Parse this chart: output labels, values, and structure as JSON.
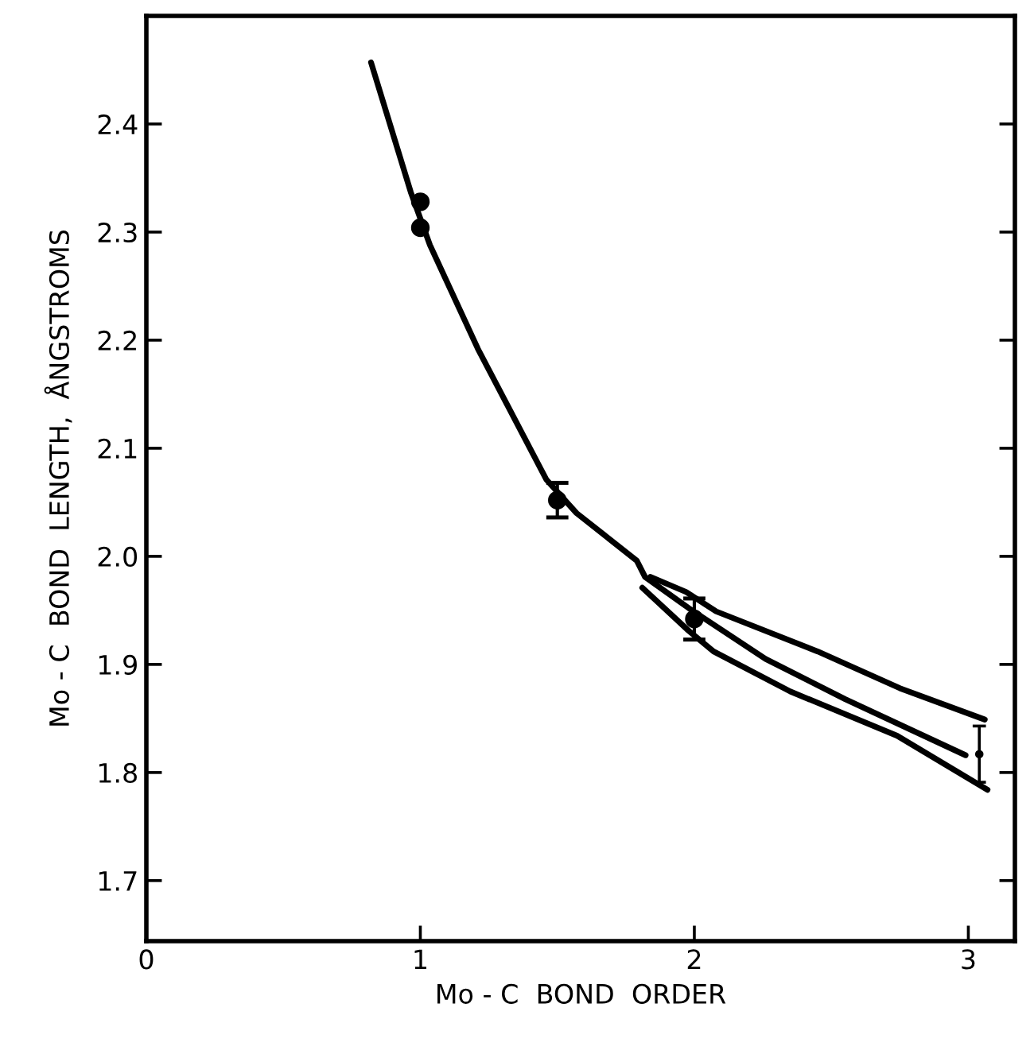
{
  "chart_data": {
    "type": "line",
    "xlabel": "Mo - C  BOND  ORDER",
    "ylabel": "Mo - C  BOND  LENGTH,  ÅNGSTROMS",
    "xlim": [
      0,
      3.17
    ],
    "ylim": [
      1.644,
      2.5
    ],
    "xticks": [
      0,
      1,
      2,
      3
    ],
    "yticks": [
      1.7,
      1.8,
      1.9,
      {
        "value": 2.0,
        "label": "2.0"
      },
      2.1,
      2.2,
      2.3,
      2.4
    ],
    "grid": false,
    "legend": false,
    "line_style": "solid",
    "series": [
      {
        "color": "#000000",
        "marker": "none",
        "x": [
          0.82,
          0.965,
          1.035,
          1.21,
          1.46,
          1.57,
          1.79,
          1.82,
          1.98,
          2.26,
          2.55,
          2.99
        ],
        "values": [
          2.457,
          2.337,
          2.288,
          2.192,
          2.071,
          2.04,
          1.996,
          1.981,
          1.952,
          1.905,
          1.868,
          1.816
        ]
      },
      {
        "color": "#000000",
        "marker": "none",
        "x": [
          1.84,
          1.97,
          2.08,
          2.45,
          2.75,
          3.06
        ],
        "values": [
          1.981,
          1.967,
          1.949,
          1.912,
          1.878,
          1.849
        ]
      },
      {
        "color": "#000000",
        "marker": "none",
        "x": [
          1.81,
          1.98,
          2.07,
          2.35,
          2.74,
          3.07
        ],
        "values": [
          1.971,
          1.931,
          1.912,
          1.875,
          1.834,
          1.784
        ]
      },
      {
        "type": "scatter",
        "color": "#000000",
        "marker": "circle",
        "x": [
          1,
          1,
          1.5,
          2
        ],
        "values": [
          2.328,
          2.304,
          2.052,
          1.942
        ],
        "errors": [
          null,
          null,
          0.016,
          0.019
        ]
      },
      {
        "type": "scatter",
        "color": "#000000",
        "marker": "circle",
        "x": [
          3.04
        ],
        "values": [
          1.817
        ],
        "errors": [
          [
            1.791,
            1.843
          ]
        ]
      }
    ]
  }
}
